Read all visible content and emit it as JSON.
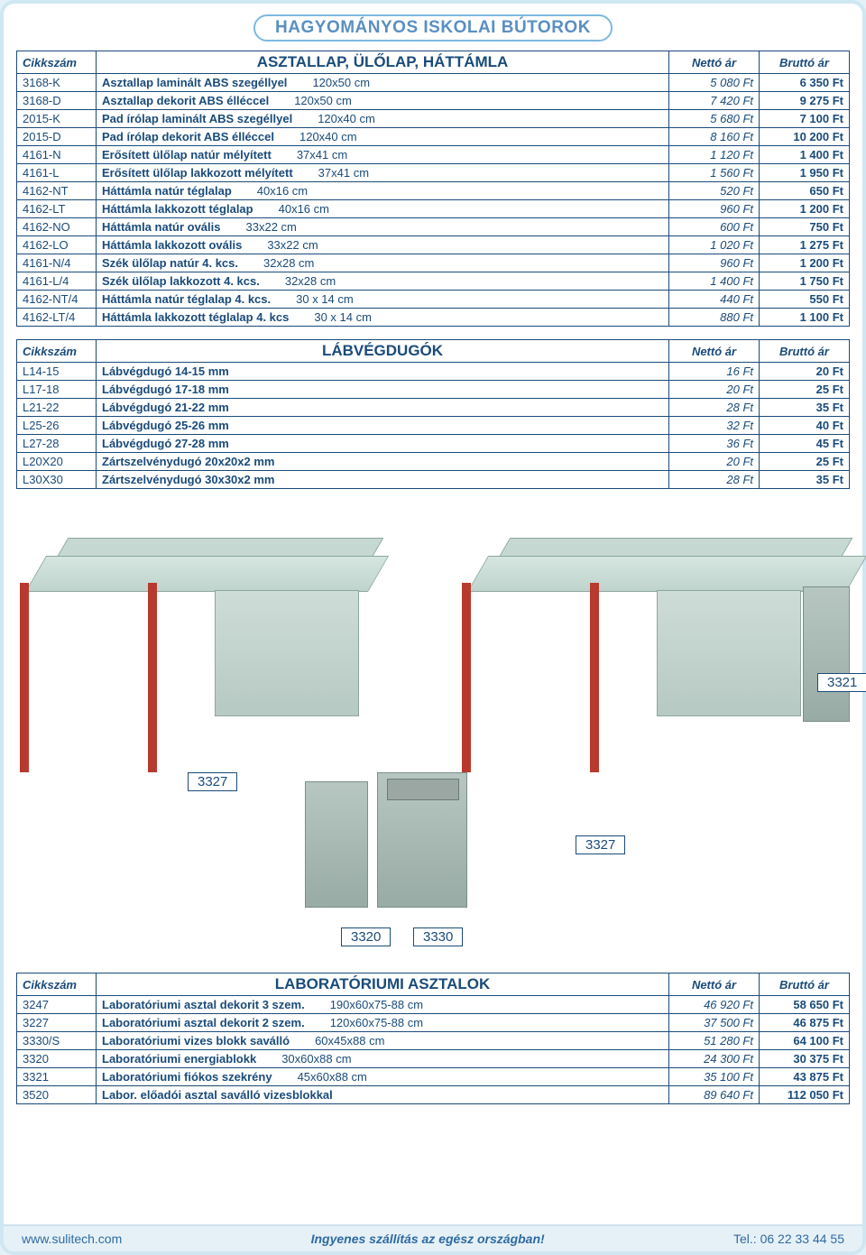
{
  "page_title": "HAGYOMÁNYOS ISKOLAI BÚTOROK",
  "headers": {
    "code": "Cikkszám",
    "net": "Nettó ár",
    "gross": "Bruttó ár"
  },
  "table1": {
    "title": "ASZTALLAP, ÜLŐLAP, HÁTTÁMLA",
    "rows": [
      {
        "code": "3168-K",
        "desc": "Asztallap laminált ABS szegéllyel",
        "dim": "120x50 cm",
        "net": "5 080 Ft",
        "gross": "6 350 Ft"
      },
      {
        "code": "3168-D",
        "desc": "Asztallap dekorit ABS élléccel",
        "dim": "120x50 cm",
        "net": "7 420 Ft",
        "gross": "9 275 Ft"
      },
      {
        "code": "2015-K",
        "desc": "Pad írólap laminált ABS szegéllyel",
        "dim": "120x40 cm",
        "net": "5 680 Ft",
        "gross": "7 100 Ft"
      },
      {
        "code": "2015-D",
        "desc": "Pad írólap dekorit ABS élléccel",
        "dim": "120x40 cm",
        "net": "8 160 Ft",
        "gross": "10 200 Ft"
      },
      {
        "code": "4161-N",
        "desc": "Erősített ülőlap natúr mélyített",
        "dim": "37x41 cm",
        "net": "1 120 Ft",
        "gross": "1 400 Ft"
      },
      {
        "code": "4161-L",
        "desc": "Erősített ülőlap lakkozott mélyített",
        "dim": "37x41 cm",
        "net": "1 560 Ft",
        "gross": "1 950 Ft"
      },
      {
        "code": "4162-NT",
        "desc": "Háttámla natúr téglalap",
        "dim": "40x16 cm",
        "net": "520 Ft",
        "gross": "650 Ft"
      },
      {
        "code": "4162-LT",
        "desc": "Háttámla lakkozott téglalap",
        "dim": "40x16 cm",
        "net": "960 Ft",
        "gross": "1 200 Ft"
      },
      {
        "code": "4162-NO",
        "desc": "Háttámla natúr ovális",
        "dim": "33x22 cm",
        "net": "600 Ft",
        "gross": "750 Ft"
      },
      {
        "code": "4162-LO",
        "desc": "Háttámla lakkozott ovális",
        "dim": "33x22 cm",
        "net": "1 020 Ft",
        "gross": "1 275 Ft"
      },
      {
        "code": "4161-N/4",
        "desc": "Szék ülőlap natúr 4. kcs.",
        "dim": "32x28 cm",
        "net": "960 Ft",
        "gross": "1 200 Ft"
      },
      {
        "code": "4161-L/4",
        "desc": "Szék ülőlap lakkozott 4. kcs.",
        "dim": "32x28 cm",
        "net": "1 400 Ft",
        "gross": "1 750 Ft"
      },
      {
        "code": "4162-NT/4",
        "desc": "Háttámla natúr téglalap 4. kcs.",
        "dim": "30 x 14 cm",
        "net": "440 Ft",
        "gross": "550 Ft"
      },
      {
        "code": "4162-LT/4",
        "desc": "Háttámla lakkozott téglalap 4. kcs",
        "dim": "30 x 14 cm",
        "net": "880 Ft",
        "gross": "1 100 Ft"
      }
    ]
  },
  "table2": {
    "title": "LÁBVÉGDUGÓK",
    "rows": [
      {
        "code": "L14-15",
        "desc": "Lábvégdugó 14-15 mm",
        "dim": "",
        "net": "16 Ft",
        "gross": "20 Ft"
      },
      {
        "code": "L17-18",
        "desc": "Lábvégdugó 17-18 mm",
        "dim": "",
        "net": "20 Ft",
        "gross": "25 Ft"
      },
      {
        "code": "L21-22",
        "desc": "Lábvégdugó 21-22 mm",
        "dim": "",
        "net": "28 Ft",
        "gross": "35 Ft"
      },
      {
        "code": "L25-26",
        "desc": "Lábvégdugó 25-26 mm",
        "dim": "",
        "net": "32 Ft",
        "gross": "40 Ft"
      },
      {
        "code": "L27-28",
        "desc": "Lábvégdugó 27-28 mm",
        "dim": "",
        "net": "36 Ft",
        "gross": "45 Ft"
      },
      {
        "code": "L20X20",
        "desc": "Zártszelvénydugó 20x20x2 mm",
        "dim": "",
        "net": "20 Ft",
        "gross": "25 Ft"
      },
      {
        "code": "L30X30",
        "desc": "Zártszelvénydugó 30x30x2 mm",
        "dim": "",
        "net": "28 Ft",
        "gross": "35 Ft"
      }
    ]
  },
  "image_labels": {
    "l1": "3327",
    "l2": "3321",
    "l3": "3327",
    "l4": "3320",
    "l5": "3330"
  },
  "table3": {
    "title": "LABORATÓRIUMI ASZTALOK",
    "rows": [
      {
        "code": "3247",
        "desc": "Laboratóriumi asztal dekorit 3 szem.",
        "dim": "190x60x75-88 cm",
        "net": "46 920 Ft",
        "gross": "58 650 Ft"
      },
      {
        "code": "3227",
        "desc": "Laboratóriumi asztal dekorit 2 szem.",
        "dim": "120x60x75-88 cm",
        "net": "37 500 Ft",
        "gross": "46 875 Ft"
      },
      {
        "code": "3330/S",
        "desc": "Laboratóriumi vizes blokk saválló",
        "dim": "60x45x88 cm",
        "net": "51 280 Ft",
        "gross": "64 100 Ft"
      },
      {
        "code": "3320",
        "desc": "Laboratóriumi energiablokk",
        "dim": "30x60x88 cm",
        "net": "24 300 Ft",
        "gross": "30 375 Ft"
      },
      {
        "code": "3321",
        "desc": "Laboratóriumi fiókos szekrény",
        "dim": "45x60x88 cm",
        "net": "35 100 Ft",
        "gross": "43 875 Ft"
      },
      {
        "code": "3520",
        "desc": "Labor. előadói asztal saválló vizesblokkal",
        "dim": "",
        "net": "89 640 Ft",
        "gross": "112 050 Ft"
      }
    ]
  },
  "footer": {
    "left": "www.sulitech.com",
    "mid": "Ingyenes szállítás az egész országban!",
    "right": "Tel.: 06 22 33 44 55"
  }
}
